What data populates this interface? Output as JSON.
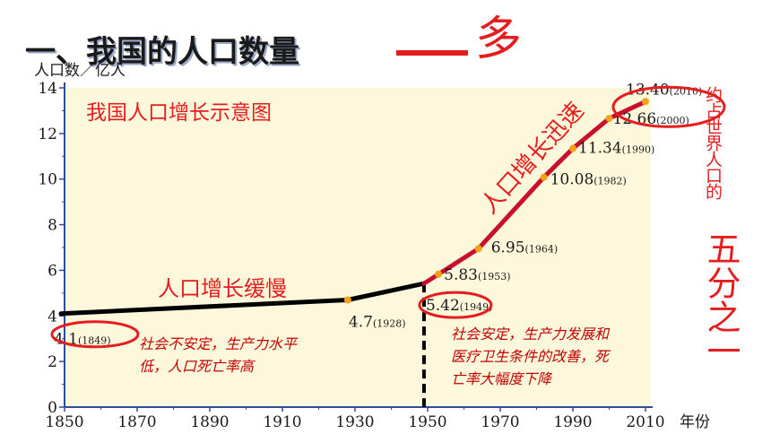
{
  "title": "一、我国的人口数量",
  "title_accent": "——多",
  "side_note_small": "约占世界人口的",
  "side_note_big": "五分之一",
  "chart_data": {
    "type": "line",
    "title": "我国人口增长示意图",
    "ylabel": "人口数／亿人",
    "xlabel": "年份",
    "xlim": [
      1850,
      2010
    ],
    "ylim": [
      0,
      14
    ],
    "x_ticks": [
      "1850",
      "1870",
      "1890",
      "1910",
      "1930",
      "1950",
      "1970",
      "1990",
      "2010"
    ],
    "y_ticks": [
      "0",
      "2",
      "4",
      "6",
      "8",
      "10",
      "12",
      "14"
    ],
    "series": [
      {
        "color": "#000000",
        "points": [
          [
            1849,
            4.1
          ],
          [
            1928,
            4.7
          ],
          [
            1949,
            5.42
          ]
        ]
      },
      {
        "color": "#c8102e",
        "points": [
          [
            1949,
            5.42
          ],
          [
            1953,
            5.83
          ],
          [
            1964,
            6.95
          ],
          [
            1982,
            10.08
          ],
          [
            1990,
            11.34
          ],
          [
            2000,
            12.66
          ],
          [
            2010,
            13.4
          ]
        ]
      }
    ],
    "point_labels": [
      {
        "value": "4.1",
        "year": "(1849)",
        "x": 1849,
        "y": 4.1
      },
      {
        "value": "4.7",
        "year": "(1928)",
        "x": 1928,
        "y": 4.7
      },
      {
        "value": "5.42",
        "year": "(1949)",
        "x": 1949,
        "y": 5.42
      },
      {
        "value": "5.83",
        "year": "(1953)",
        "x": 1953,
        "y": 5.83
      },
      {
        "value": "6.95",
        "year": "(1964)",
        "x": 1964,
        "y": 6.95
      },
      {
        "value": "10.08",
        "year": "(1982)",
        "x": 1982,
        "y": 10.08
      },
      {
        "value": "11.34",
        "year": "(1990)",
        "x": 1990,
        "y": 11.34
      },
      {
        "value": "12.66",
        "year": "(2000)",
        "x": 2000,
        "y": 12.66
      },
      {
        "value": "13.40",
        "year": "(2010)",
        "x": 2010,
        "y": 13.4
      }
    ],
    "annotations": {
      "slow": "人口增长缓慢",
      "fast": "人口增长迅速",
      "before_1": "社会不安定，生产力水平",
      "before_2": "低，人口死亡率高",
      "after_1": "社会安定，生产力发展和",
      "after_2": "医疗卫生条件的改善，死",
      "after_3": "亡率大幅度下降"
    },
    "divider_year": 1949,
    "background": "#fdf8dc",
    "grid": false
  }
}
